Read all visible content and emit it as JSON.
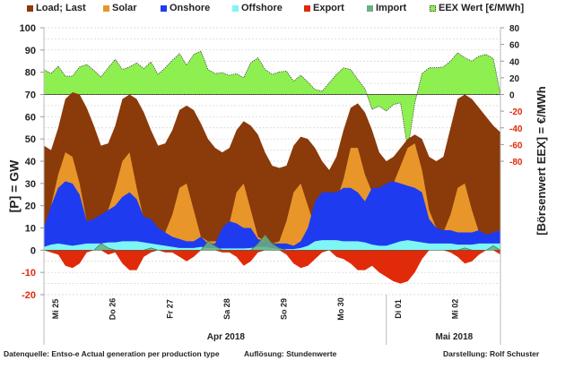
{
  "legend": [
    {
      "label": "Load; Last",
      "color": "#8B3A0A"
    },
    {
      "label": "Solar",
      "color": "#E8962A"
    },
    {
      "label": "Onshore",
      "color": "#1F3BF0"
    },
    {
      "label": "Offshore",
      "color": "#7FF5F5"
    },
    {
      "label": "Export",
      "color": "#E02A0A"
    },
    {
      "label": "Import",
      "color": "#6DAF7F"
    },
    {
      "label": "EEX Wert [€/MWh]",
      "color": "#8EF050"
    }
  ],
  "footer": {
    "source": "Datenquelle: Entso-e  Actual generation per production type",
    "resolution": "Auflösung: Stundenwerte",
    "author": "Darstellung:  Rolf Schuster"
  },
  "chart_data": {
    "type": "area",
    "title": "",
    "ylabel": "[P] = GW",
    "y2label": "[Börsenwert  EEX]  = €/MWh",
    "ylim": [
      -20,
      100
    ],
    "y2lim": [
      -80,
      80
    ],
    "y_ticks": [
      100,
      90,
      80,
      70,
      60,
      50,
      40,
      30,
      20,
      10,
      0,
      -10,
      -20
    ],
    "y2_ticks": [
      80,
      60,
      40,
      20,
      0,
      -20,
      -40,
      -60,
      -80
    ],
    "grid": true,
    "legend_position": "top",
    "x_unit": "days since Mi 25 00:00",
    "x_ticks": [
      {
        "day": 0,
        "label": "Mi 25"
      },
      {
        "day": 1,
        "label": "Do 26"
      },
      {
        "day": 2,
        "label": "Fr 27"
      },
      {
        "day": 3,
        "label": "Sa 28"
      },
      {
        "day": 4,
        "label": "So 29"
      },
      {
        "day": 5,
        "label": "Mo 30"
      },
      {
        "day": 6,
        "label": "Di 01"
      },
      {
        "day": 7,
        "label": "Mi 02"
      }
    ],
    "month_labels": [
      {
        "label": "Apr 2018",
        "center_day": 3
      },
      {
        "label": "Mai 2018",
        "center_day": 7
      }
    ],
    "month_boundaries_day": [
      0,
      6,
      8
    ],
    "x": [
      0,
      0.125,
      0.25,
      0.375,
      0.5,
      0.625,
      0.75,
      0.875,
      1,
      1.125,
      1.25,
      1.375,
      1.5,
      1.625,
      1.75,
      1.875,
      2,
      2.125,
      2.25,
      2.375,
      2.5,
      2.625,
      2.75,
      2.875,
      3,
      3.125,
      3.25,
      3.375,
      3.5,
      3.625,
      3.75,
      3.875,
      4,
      4.125,
      4.25,
      4.375,
      4.5,
      4.625,
      4.75,
      4.875,
      5,
      5.125,
      5.25,
      5.375,
      5.5,
      5.625,
      5.75,
      5.875,
      6,
      6.125,
      6.25,
      6.375,
      6.5,
      6.625,
      6.75,
      6.875,
      7,
      7.125,
      7.25,
      7.375,
      7.5,
      7.625,
      7.75,
      7.875,
      8
    ],
    "series": [
      {
        "name": "Load; Last",
        "stack_top": true,
        "values": [
          47,
          45,
          55,
          68,
          71,
          70,
          64,
          56,
          47,
          48,
          56,
          68,
          70,
          68,
          62,
          54,
          47,
          48,
          54,
          63,
          65,
          63,
          57,
          50,
          46,
          44,
          46,
          54,
          58,
          56,
          52,
          44,
          38,
          37,
          38,
          47,
          51,
          50,
          46,
          40,
          36,
          42,
          54,
          64,
          66,
          62,
          54,
          44,
          40,
          42,
          46,
          50,
          52,
          50,
          42,
          40,
          42,
          55,
          68,
          70,
          68,
          64,
          60,
          56,
          53
        ]
      },
      {
        "name": "Solar",
        "stack_top": true,
        "values": [
          3,
          20,
          34,
          44,
          42,
          30,
          13,
          12,
          12,
          18,
          28,
          40,
          44,
          28,
          14,
          12,
          8,
          8,
          16,
          28,
          30,
          18,
          6,
          4,
          4,
          4,
          12,
          26,
          30,
          18,
          6,
          4,
          3,
          4,
          13,
          26,
          30,
          20,
          10,
          8,
          18,
          22,
          32,
          46,
          46,
          34,
          26,
          26,
          26,
          30,
          38,
          46,
          48,
          36,
          18,
          10,
          8,
          16,
          28,
          30,
          18,
          8,
          5,
          8,
          9
        ]
      },
      {
        "name": "Onshore",
        "stack_top": true,
        "values": [
          10,
          20,
          28,
          31,
          30,
          25,
          13,
          14,
          16,
          18,
          20,
          24,
          26,
          23,
          15,
          14,
          10,
          8,
          6,
          5,
          4,
          4,
          6,
          3,
          3,
          10,
          13,
          12,
          10,
          10,
          5,
          4,
          3,
          3,
          3,
          2,
          4,
          10,
          22,
          26,
          26,
          26,
          28,
          28,
          26,
          22,
          28,
          28,
          30,
          31,
          30,
          29,
          28,
          26,
          14,
          10,
          9,
          9,
          8,
          8,
          8,
          9,
          7,
          8,
          9
        ]
      },
      {
        "name": "Offshore",
        "stack_top": true,
        "values": [
          1.5,
          2.5,
          3,
          2.5,
          2,
          2.5,
          3,
          3,
          3,
          3.5,
          3.5,
          4,
          4,
          4,
          3.5,
          3,
          2.5,
          2,
          1.5,
          1,
          1,
          1,
          1.5,
          1,
          1,
          0.8,
          0.8,
          0.8,
          0.8,
          1,
          1.5,
          1.5,
          1,
          0.5,
          0.5,
          0.5,
          1,
          2,
          4,
          4.5,
          4.5,
          4.5,
          4,
          4,
          4,
          3.5,
          2.5,
          2,
          2,
          3,
          4,
          4.5,
          4,
          3.5,
          3,
          3,
          3,
          3,
          2.5,
          2.5,
          2.5,
          3,
          3,
          3,
          3
        ]
      },
      {
        "name": "Export",
        "values": [
          0,
          -1,
          -2,
          -7,
          -8,
          -6,
          -1,
          0,
          0,
          -2,
          -1,
          -6,
          -9,
          -9,
          -3,
          -1,
          0,
          -1,
          -1,
          -3,
          -5,
          -3,
          0,
          0,
          0,
          -1,
          -1,
          -3,
          -7,
          -5,
          -1,
          0,
          0,
          0,
          -2,
          -6,
          -8,
          -7,
          -4,
          -1,
          0,
          -3,
          -4,
          -6,
          -9,
          -9,
          -7,
          -10,
          -12,
          -14,
          -15,
          -14,
          -10,
          -4,
          0,
          0,
          0,
          -1,
          -3,
          -6,
          -5,
          -2,
          0,
          0,
          -2
        ]
      },
      {
        "name": "Import",
        "values": [
          0,
          0,
          0,
          0,
          0,
          0,
          0,
          0,
          3,
          1,
          0,
          0,
          0,
          0,
          0,
          1,
          0,
          0,
          0,
          0,
          0,
          0,
          0,
          4,
          2,
          0,
          0,
          0,
          0,
          0,
          3,
          7,
          3,
          1,
          0,
          0,
          0,
          0,
          0,
          0,
          0,
          0,
          0,
          0,
          0,
          0,
          0,
          0,
          0,
          0,
          0,
          0,
          0,
          0,
          0,
          0,
          0,
          0,
          0,
          1,
          0,
          0,
          0,
          2,
          0
        ]
      },
      {
        "name": "EEX Wert [€/MWh]",
        "axis": "right",
        "values": [
          30,
          25,
          34,
          22,
          22,
          33,
          36,
          29,
          21,
          32,
          42,
          30,
          33,
          38,
          31,
          39,
          24,
          32,
          41,
          49,
          35,
          48,
          52,
          30,
          25,
          26,
          23,
          25,
          20,
          38,
          44,
          30,
          24,
          27,
          28,
          16,
          23,
          15,
          6,
          4,
          14,
          24,
          32,
          30,
          18,
          7,
          -18,
          -14,
          -20,
          -12,
          -10,
          -66,
          -10,
          25,
          32,
          32,
          33,
          40,
          50,
          44,
          40,
          46,
          48,
          43,
          0
        ]
      }
    ]
  }
}
